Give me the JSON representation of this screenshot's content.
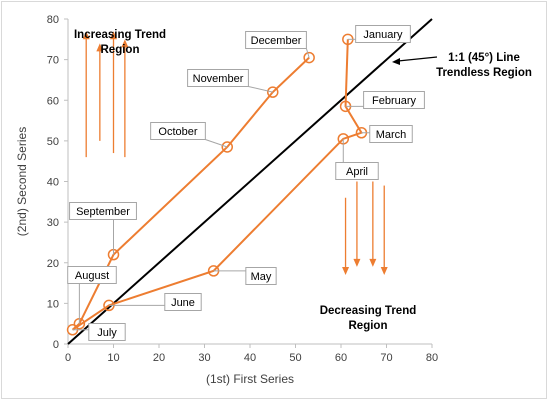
{
  "chart_data": {
    "type": "scatter",
    "xlabel": "(1st) First Series",
    "ylabel": "(2nd) Second Series",
    "xlim": [
      0,
      80
    ],
    "ylim": [
      0,
      80
    ],
    "xticks": [
      0,
      10,
      20,
      30,
      40,
      50,
      60,
      70,
      80
    ],
    "yticks": [
      0,
      10,
      20,
      30,
      40,
      50,
      60,
      70,
      80
    ],
    "grid": false,
    "series": [
      {
        "style": "line-with-circle-markers",
        "color": "#ED7D31",
        "points": [
          {
            "label": "January",
            "x": 61.5,
            "y": 75.0
          },
          {
            "label": "February",
            "x": 61.0,
            "y": 58.5
          },
          {
            "label": "March",
            "x": 64.5,
            "y": 52.0
          },
          {
            "label": "April",
            "x": 60.5,
            "y": 50.5
          },
          {
            "label": "May",
            "x": 32.0,
            "y": 18.0
          },
          {
            "label": "June",
            "x": 9.0,
            "y": 9.5
          },
          {
            "label": "July",
            "x": 1.0,
            "y": 3.5
          },
          {
            "label": "August",
            "x": 2.5,
            "y": 5.0
          },
          {
            "label": "September",
            "x": 10.0,
            "y": 22.0
          },
          {
            "label": "October",
            "x": 35.0,
            "y": 48.5
          },
          {
            "label": "November",
            "x": 45.0,
            "y": 62.0
          },
          {
            "label": "December",
            "x": 53.0,
            "y": 70.5
          }
        ]
      }
    ],
    "reference_line": {
      "from": [
        0,
        0
      ],
      "to": [
        80,
        80
      ],
      "color": "#000000"
    },
    "annotations": {
      "increasing": [
        "Increasing Trend",
        "Region"
      ],
      "trendless": [
        "1:1 (45°) Line",
        "Trendless Region"
      ],
      "decreasing": [
        "Decreasing Trend",
        "Region"
      ]
    },
    "up_arrows_x": [
      4,
      7,
      10,
      12.5
    ],
    "down_arrows_x": [
      61,
      63.5,
      67,
      69.5
    ]
  }
}
